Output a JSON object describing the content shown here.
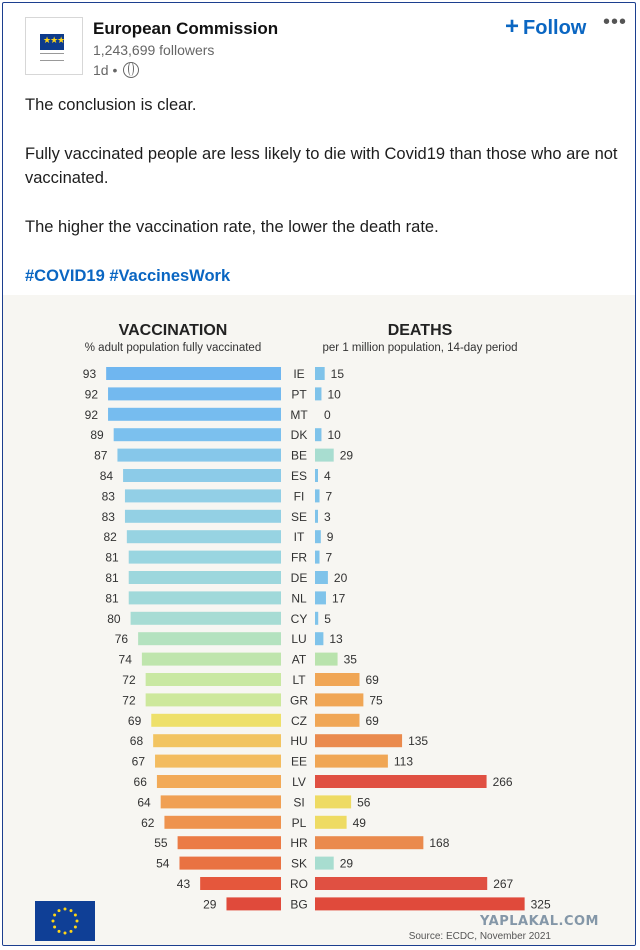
{
  "post": {
    "author": "European Commission",
    "followers": "1,243,699 followers",
    "time": "1d",
    "follow_label": "Follow",
    "more_label": "•••",
    "paragraphs": [
      "The conclusion is clear.",
      "Fully vaccinated people are less likely to die with Covid19 than those who are not vaccinated.",
      "The higher the vaccination rate, the lower the death rate."
    ],
    "hashtags": "#COVID19 #VaccinesWork"
  },
  "icons": {
    "logo": "eu-flag-icon",
    "globe": "globe-icon",
    "follow": "plus-icon",
    "more": "more-dots-icon"
  },
  "watermark": "YAPLAKAL.COM",
  "chart_data": {
    "type": "bar",
    "left_panel": {
      "title": "VACCINATION",
      "subtitle": "% adult population fully vaccinated"
    },
    "right_panel": {
      "title": "DEATHS",
      "subtitle": "per 1 million population, 14-day period"
    },
    "source": "Source: ECDC, November 2021",
    "categories": [
      "IE",
      "PT",
      "MT",
      "DK",
      "BE",
      "ES",
      "FI",
      "SE",
      "IT",
      "FR",
      "DE",
      "NL",
      "CY",
      "LU",
      "AT",
      "LT",
      "GR",
      "CZ",
      "HU",
      "EE",
      "LV",
      "SI",
      "PL",
      "HR",
      "SK",
      "RO",
      "BG"
    ],
    "series": [
      {
        "name": "VACCINATION",
        "values": [
          93,
          92,
          92,
          89,
          87,
          84,
          83,
          83,
          82,
          81,
          81,
          81,
          80,
          76,
          74,
          72,
          72,
          69,
          68,
          67,
          66,
          64,
          62,
          55,
          54,
          43,
          29
        ]
      },
      {
        "name": "DEATHS",
        "values": [
          15,
          10,
          0,
          10,
          29,
          4,
          7,
          3,
          9,
          7,
          20,
          17,
          5,
          13,
          35,
          69,
          75,
          69,
          135,
          113,
          266,
          56,
          49,
          168,
          29,
          267,
          325
        ]
      }
    ],
    "vaccination_colors": [
      "#6fb6f0",
      "#73b9ef",
      "#76bcef",
      "#7bc0ee",
      "#86c7ea",
      "#8ccbe8",
      "#92cfe6",
      "#93d0e4",
      "#97d3e2",
      "#99d5e0",
      "#9dd7dd",
      "#a0d9da",
      "#a7dcd4",
      "#b4e2bf",
      "#bfe5ad",
      "#c9e8a2",
      "#cde89c",
      "#eee06a",
      "#f2c461",
      "#f3bc5f",
      "#f2aa57",
      "#f0a053",
      "#ee934e",
      "#eb7b45",
      "#e97242",
      "#e5573c",
      "#e04a3b"
    ],
    "death_colors": [
      "#7fc3ea",
      "#7fc3ea",
      "#7fc3ea",
      "#7fc3ea",
      "#a8ddd0",
      "#7fc3ea",
      "#7fc3ea",
      "#7fc3ea",
      "#7fc3ea",
      "#7fc3ea",
      "#7fc3ea",
      "#7fc3ea",
      "#7fc3ea",
      "#7fc3ea",
      "#b9e3ad",
      "#f0a655",
      "#f0a655",
      "#f0a655",
      "#ea8a4d",
      "#f0a655",
      "#e05042",
      "#eedb63",
      "#eedb63",
      "#ea8a4d",
      "#a8ddd0",
      "#e05042",
      "#e04a3b"
    ]
  }
}
